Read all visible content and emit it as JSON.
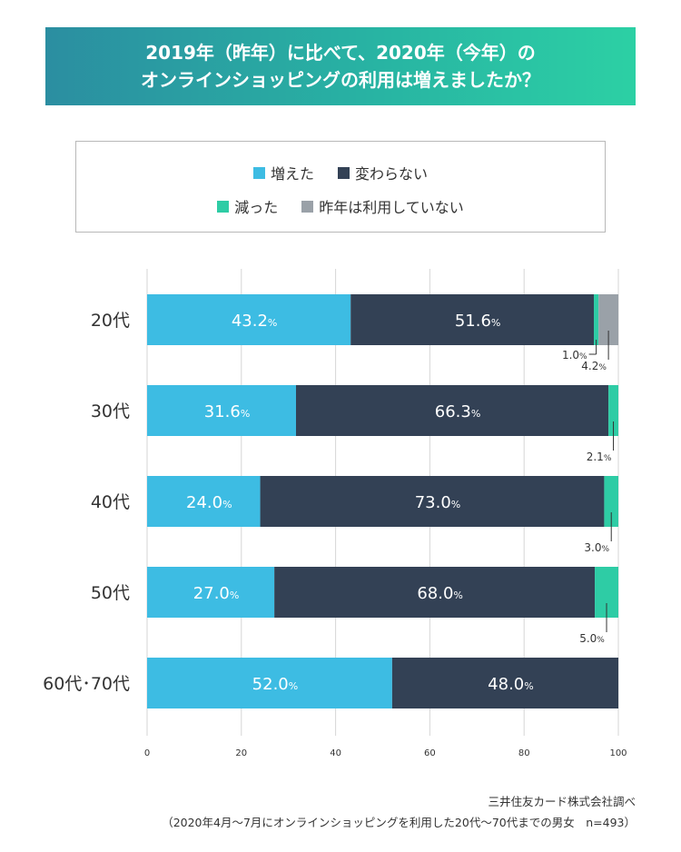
{
  "title": {
    "line1": "2019年（昨年）に比べて、2020年（今年）の",
    "line2": "オンラインショッピングの利用は増えましたか？"
  },
  "legend": {
    "items": [
      {
        "label": "増えた",
        "color": "#3dbce3"
      },
      {
        "label": "変わらない",
        "color": "#334155"
      },
      {
        "label": "減った",
        "color": "#2ecca5"
      },
      {
        "label": "昨年は利用していない",
        "color": "#9aa1a8"
      }
    ]
  },
  "chart_data": {
    "type": "bar",
    "orientation": "horizontal",
    "stacked": true,
    "categories": [
      "20代",
      "30代",
      "40代",
      "50代",
      "60代･70代"
    ],
    "series": [
      {
        "name": "増えた",
        "color": "#3dbce3",
        "values": [
          43.2,
          31.6,
          24.0,
          27.0,
          52.0
        ],
        "labels": [
          "43.2",
          "31.6",
          "24.0",
          "27.0",
          "52.0"
        ]
      },
      {
        "name": "変わらない",
        "color": "#334155",
        "values": [
          51.6,
          66.3,
          73.0,
          68.0,
          48.0
        ],
        "labels": [
          "51.6",
          "66.3",
          "73.0",
          "68.0",
          "48.0"
        ]
      },
      {
        "name": "減った",
        "color": "#2ecca5",
        "values": [
          1.0,
          2.1,
          3.0,
          5.0,
          0
        ],
        "labels": [
          "1.0",
          "2.1",
          "3.0",
          "5.0",
          ""
        ]
      },
      {
        "name": "昨年は利用していない",
        "color": "#9aa1a8",
        "values": [
          4.2,
          0,
          0,
          0,
          0
        ],
        "labels": [
          "4.2",
          "",
          "",
          "",
          ""
        ]
      }
    ],
    "unit": "%",
    "xlim": [
      0,
      100
    ],
    "xticks": [
      "0",
      "20",
      "40",
      "60",
      "80",
      "100"
    ],
    "grid": true
  },
  "footer": {
    "source": "三井住友カード株式会社調べ",
    "note": "（2020年4月～7月にオンラインショッピングを利用した20代～70代までの男女　n=493）"
  }
}
